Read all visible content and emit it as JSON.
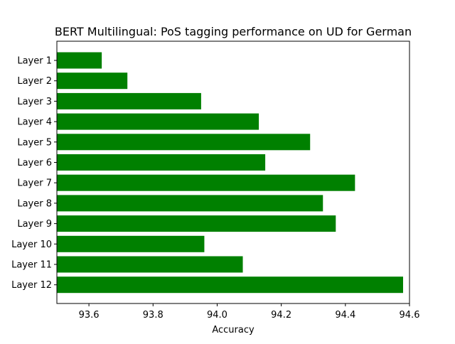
{
  "chart_data": {
    "type": "bar",
    "orientation": "horizontal",
    "title": "BERT Multilingual: PoS tagging performance on UD for German",
    "xlabel": "Accuracy",
    "ylabel": "",
    "categories": [
      "Layer 1",
      "Layer 2",
      "Layer 3",
      "Layer 4",
      "Layer 5",
      "Layer 6",
      "Layer 7",
      "Layer 8",
      "Layer 9",
      "Layer 10",
      "Layer 11",
      "Layer 12"
    ],
    "values": [
      93.64,
      93.72,
      93.95,
      94.13,
      94.29,
      94.15,
      94.43,
      94.33,
      94.37,
      93.96,
      94.08,
      94.58
    ],
    "xlim": [
      93.5,
      94.6
    ],
    "xticks": [
      "93.6",
      "93.8",
      "94.0",
      "94.2",
      "94.4",
      "94.6"
    ],
    "bar_color": "#008000",
    "grid": false,
    "legend": "none"
  }
}
